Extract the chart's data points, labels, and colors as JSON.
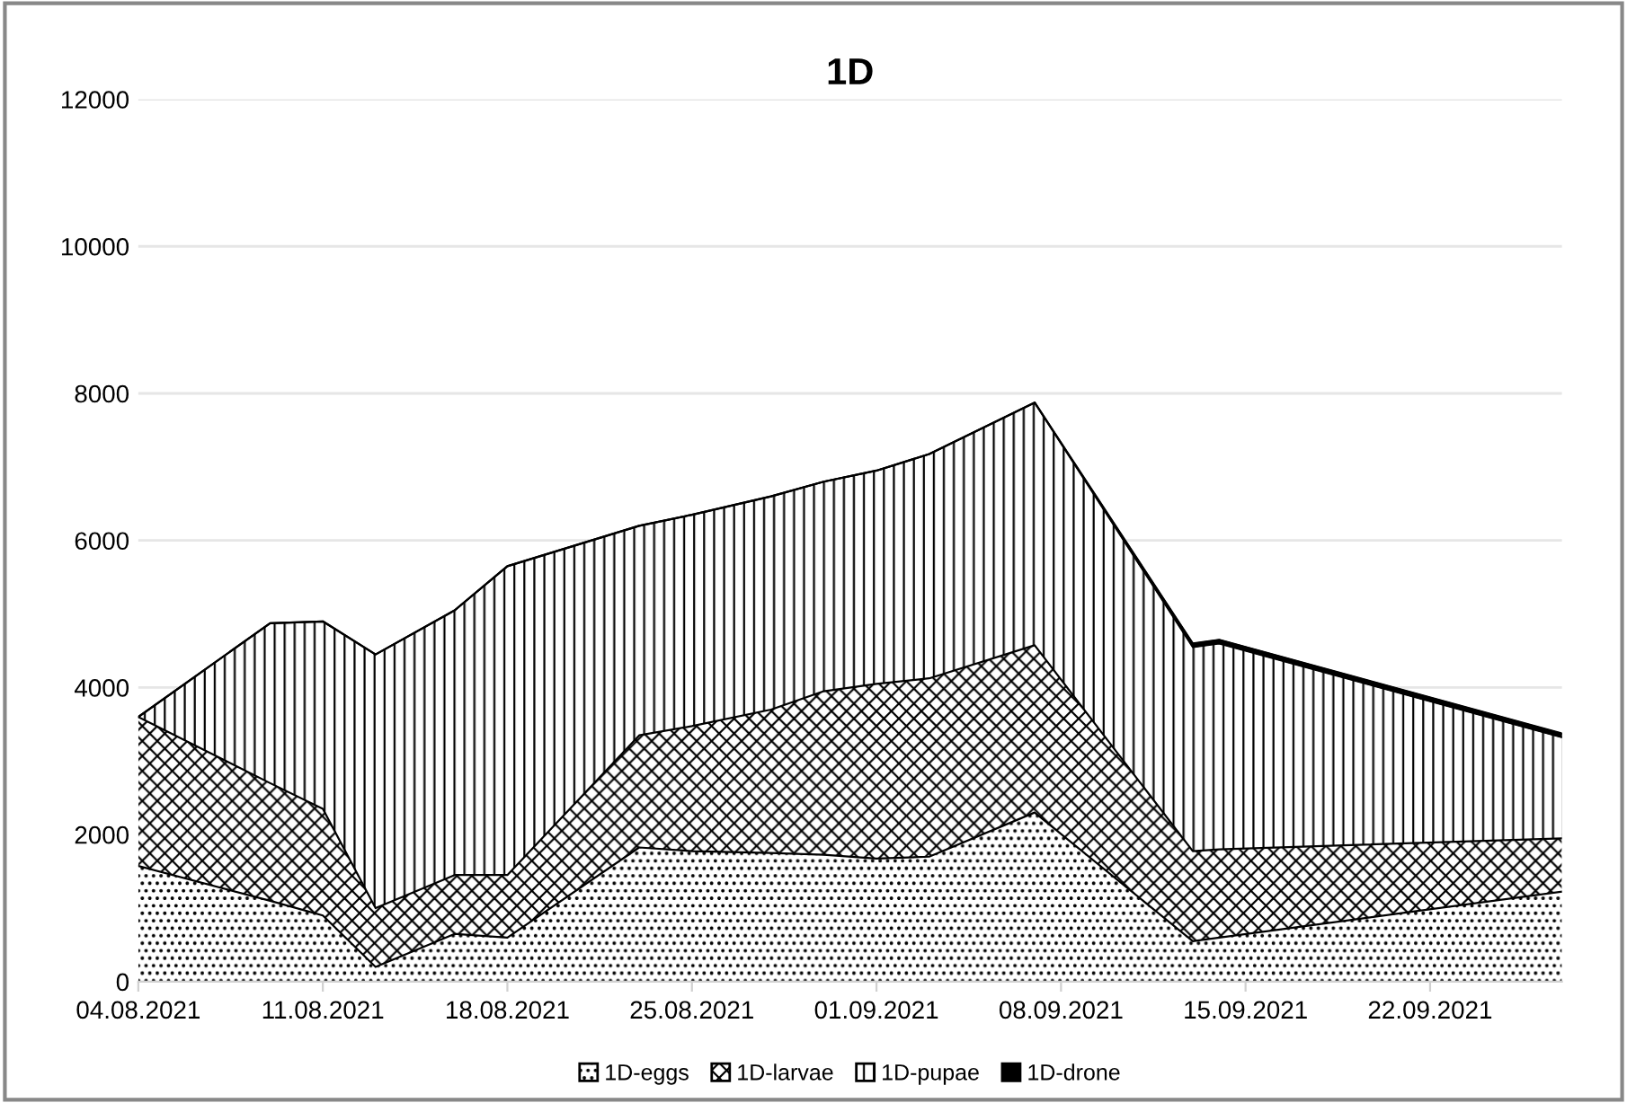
{
  "chart_data": {
    "type": "area",
    "title": "1D",
    "stacked": true,
    "x": [
      "2021-08-04",
      "2021-08-09",
      "2021-08-11",
      "2021-08-13",
      "2021-08-16",
      "2021-08-18",
      "2021-08-23",
      "2021-08-25",
      "2021-08-28",
      "2021-08-30",
      "2021-09-01",
      "2021-09-03",
      "2021-09-07",
      "2021-09-13",
      "2021-09-14",
      "2021-09-27"
    ],
    "series": [
      {
        "name": "1D-eggs",
        "color": "#000000",
        "values": [
          1575,
          1100,
          900,
          200,
          650,
          600,
          1825,
          1775,
          1750,
          1725,
          1675,
          1700,
          2300,
          550,
          600,
          1225
        ]
      },
      {
        "name": "1D-larvae",
        "color": "#000000",
        "values": [
          2025,
          1600,
          1450,
          800,
          800,
          850,
          1525,
          1700,
          1950,
          2225,
          2375,
          2425,
          2275,
          1225,
          1200,
          725
        ]
      },
      {
        "name": "1D-pupae",
        "color": "#000000",
        "values": [
          0,
          2175,
          2550,
          3450,
          3600,
          4200,
          2850,
          2875,
          2900,
          2850,
          2900,
          3050,
          3300,
          2775,
          2800,
          1375
        ]
      },
      {
        "name": "1D-drone",
        "color": "#000000",
        "values": [
          0,
          0,
          0,
          0,
          0,
          0,
          0,
          0,
          0,
          0,
          0,
          0,
          0,
          50,
          50,
          50
        ]
      }
    ],
    "xlim": [
      "2021-08-04",
      "2021-09-27"
    ],
    "xticks": [
      {
        "value": "2021-08-04",
        "label": "04.08.2021"
      },
      {
        "value": "2021-08-11",
        "label": "11.08.2021"
      },
      {
        "value": "2021-08-18",
        "label": "18.08.2021"
      },
      {
        "value": "2021-08-25",
        "label": "25.08.2021"
      },
      {
        "value": "2021-09-01",
        "label": "01.09.2021"
      },
      {
        "value": "2021-09-08",
        "label": "08.09.2021"
      },
      {
        "value": "2021-09-15",
        "label": "15.09.2021"
      },
      {
        "value": "2021-09-22",
        "label": "22.09.2021"
      }
    ],
    "ylim": [
      0,
      12000
    ],
    "yticks": [
      0,
      2000,
      4000,
      6000,
      8000,
      10000,
      12000
    ],
    "grid": "y",
    "legend": "bottom"
  }
}
